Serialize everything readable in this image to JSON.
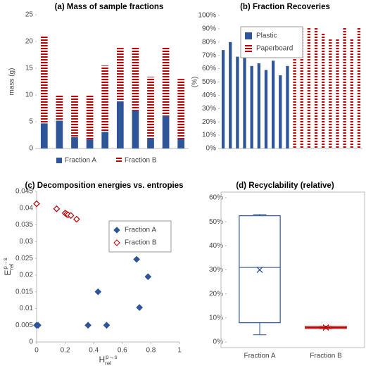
{
  "chart_data": [
    {
      "type": "bar",
      "stacked": true,
      "title": "(a) Mass of sample fractions",
      "y_label": "mass (g)",
      "categories": [
        null,
        null,
        null,
        null,
        null,
        null,
        null,
        null,
        null,
        null
      ],
      "series": [
        {
          "name": "Fraction A",
          "color": "#2e5597",
          "values": [
            4.7,
            5.2,
            2.1,
            1.7,
            3.1,
            8.8,
            7.1,
            1.9,
            6.1,
            1.8
          ]
        },
        {
          "name": "Fraction B",
          "color": "#c00000",
          "pattern": "stripes",
          "values": [
            16.3,
            4.8,
            7.9,
            8.3,
            12.4,
            10.0,
            11.8,
            11.5,
            12.9,
            11.2
          ]
        }
      ],
      "ylim": [
        0,
        25
      ],
      "yticks": [
        0,
        5,
        10,
        15,
        20,
        25
      ],
      "legend": "bottom"
    },
    {
      "type": "bar",
      "stacked": false,
      "title": "(b) Fraction Recoveries",
      "y_label": "(%)",
      "categories": [
        null,
        null,
        null,
        null,
        null,
        null,
        null,
        null,
        null,
        null,
        null,
        null,
        null,
        null,
        null,
        null,
        null,
        null,
        null,
        null
      ],
      "series": [
        {
          "name": "Plastic",
          "color": "#2e5597",
          "values": [
            74,
            80,
            69,
            68,
            62,
            64,
            59,
            66,
            55,
            62,
            null,
            null,
            null,
            null,
            null,
            null,
            null,
            null,
            null,
            null
          ]
        },
        {
          "name": "Paperboard",
          "color": "#c00000",
          "pattern": "stripes",
          "values": [
            null,
            null,
            null,
            null,
            null,
            null,
            null,
            null,
            null,
            null,
            91,
            91,
            91,
            91,
            87,
            83,
            83,
            91,
            83,
            91
          ]
        }
      ],
      "ylim": [
        0,
        100
      ],
      "yticks": [
        {
          "value": 0,
          "label": "0%"
        },
        {
          "value": 10,
          "label": "10%"
        },
        {
          "value": 20,
          "label": "20%"
        },
        {
          "value": 30,
          "label": "30%"
        },
        {
          "value": 40,
          "label": "40%"
        },
        {
          "value": 50,
          "label": "50%"
        },
        {
          "value": 60,
          "label": "60%"
        },
        {
          "value": 70,
          "label": "70%"
        },
        {
          "value": 80,
          "label": "80%"
        },
        {
          "value": 90,
          "label": "90%"
        },
        {
          "value": 100,
          "label": "100%"
        }
      ],
      "legend": "upper left"
    },
    {
      "type": "scatter",
      "title": "(c) Decomposition energies vs. entropies",
      "x_label": {
        "text": "H",
        "sub": "rel",
        "sup": "p→s"
      },
      "y_label": {
        "text": "E",
        "sub": "rel",
        "sup": "p→s"
      },
      "series": [
        {
          "name": "Fraction A",
          "color": "#2e5597",
          "filled": true,
          "x": [
            0.0,
            0.01,
            0.36,
            0.49,
            0.43,
            0.72,
            0.78,
            0.7
          ],
          "values": [
            0.005,
            0.005,
            0.005,
            0.005,
            0.015,
            0.0103,
            0.0195,
            0.0247
          ]
        },
        {
          "name": "Fraction B",
          "color": "#c00000",
          "filled": false,
          "x": [
            0.0,
            0.14,
            0.2,
            0.21,
            0.22,
            0.24,
            0.28
          ],
          "values": [
            0.0413,
            0.0398,
            0.0385,
            0.0382,
            0.038,
            0.0378,
            0.0367
          ]
        }
      ],
      "xlim": [
        0,
        1
      ],
      "xticks": [
        0,
        0.2,
        0.4,
        0.6,
        0.8,
        1
      ],
      "ylim": [
        0,
        0.045
      ],
      "yticks": [
        0,
        0.005,
        0.01,
        0.015,
        0.02,
        0.025,
        0.03,
        0.035,
        0.04,
        0.045
      ],
      "legend": "upper right"
    },
    {
      "type": "box",
      "title": "(d) Recyclability (relative)",
      "categories": [
        "Fraction A",
        "Fraction B"
      ],
      "boxes": [
        {
          "min": 3,
          "q1": 8,
          "median": 31,
          "mean": 30,
          "q3": 52.5,
          "max": 53,
          "color": "#2e5597"
        },
        {
          "min": 5.5,
          "q1": 5.6,
          "median": 6,
          "mean": 6,
          "q3": 6.5,
          "max": 6.6,
          "color": "#c00000"
        }
      ],
      "ylim": [
        0,
        60
      ],
      "yticks": [
        {
          "value": 0,
          "label": "0%"
        },
        {
          "value": 10,
          "label": "10%"
        },
        {
          "value": 20,
          "label": "20%"
        },
        {
          "value": 30,
          "label": "30%"
        },
        {
          "value": 40,
          "label": "40%"
        },
        {
          "value": 50,
          "label": "50%"
        },
        {
          "value": 60,
          "label": "60%"
        }
      ]
    }
  ]
}
